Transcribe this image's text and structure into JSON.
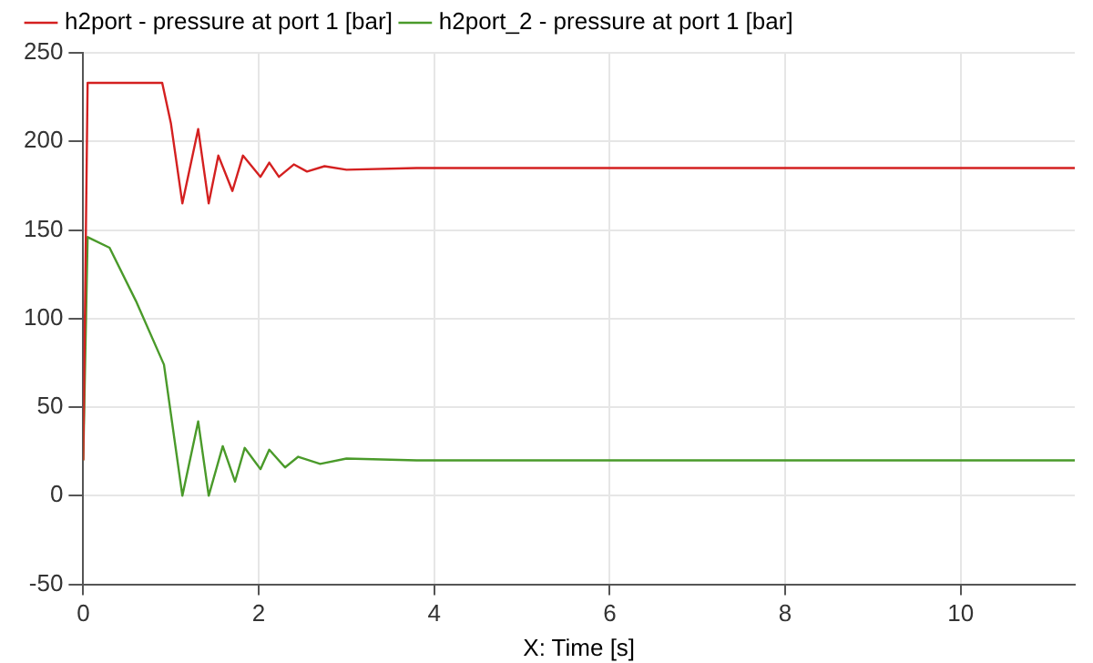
{
  "chart_data": {
    "type": "line",
    "xlabel": "X: Time [s]",
    "xlim": [
      0,
      11.3
    ],
    "xticks": [
      0,
      2,
      4,
      6,
      8,
      10
    ],
    "ylim": [
      -50,
      250
    ],
    "yticks": [
      -50,
      0,
      50,
      100,
      150,
      200,
      250
    ],
    "grid": true,
    "legend": "top left",
    "marker": "none",
    "line_style": "solid",
    "series": [
      {
        "name": "h2port - pressure at port 1 [bar]",
        "color": "#d42020",
        "x": [
          0,
          0.05,
          0.9,
          1.0,
          1.13,
          1.31,
          1.43,
          1.54,
          1.7,
          1.82,
          2.02,
          2.12,
          2.23,
          2.4,
          2.55,
          2.75,
          3.0,
          3.8,
          11.3
        ],
        "values": [
          20,
          233,
          233,
          210,
          165,
          207,
          165,
          192,
          172,
          192,
          180,
          188,
          180,
          187,
          183,
          186,
          184,
          185,
          185
        ]
      },
      {
        "name": "h2port_2 - pressure at port 1 [bar]",
        "color": "#4a9a2a",
        "x": [
          0,
          0.05,
          0.3,
          0.6,
          0.92,
          1.13,
          1.31,
          1.43,
          1.59,
          1.73,
          1.84,
          2.02,
          2.12,
          2.3,
          2.45,
          2.7,
          3.0,
          3.8,
          11.3
        ],
        "values": [
          20,
          146,
          140,
          110,
          74,
          0,
          42,
          0,
          28,
          8,
          27,
          15,
          26,
          16,
          22,
          18,
          21,
          20,
          20
        ]
      }
    ]
  }
}
